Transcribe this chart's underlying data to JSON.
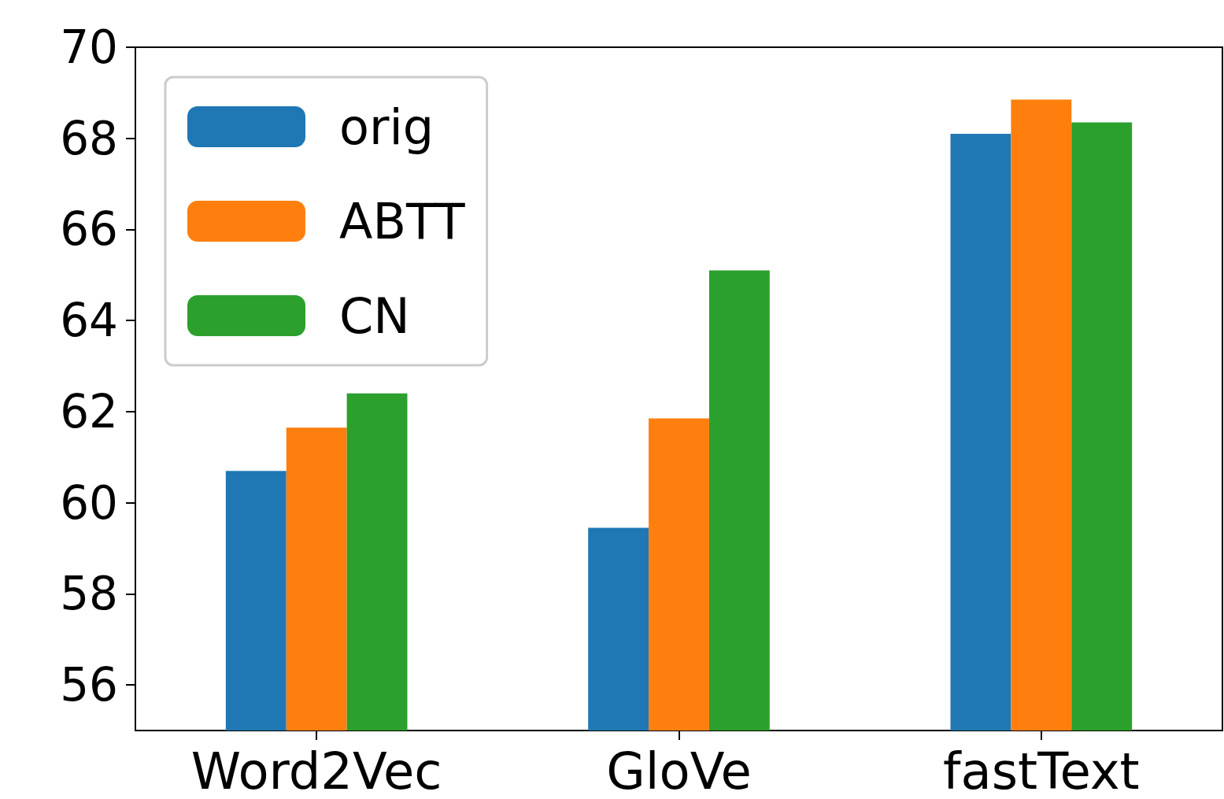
{
  "chart_data": {
    "type": "bar",
    "categories": [
      "Word2Vec",
      "GloVe",
      "fastText"
    ],
    "series": [
      {
        "name": "orig",
        "color": "#1f77b4",
        "values": [
          60.7,
          59.45,
          68.1
        ]
      },
      {
        "name": "ABTT",
        "color": "#ff7f0e",
        "values": [
          61.65,
          61.85,
          68.85
        ]
      },
      {
        "name": "CN",
        "color": "#2ca02c",
        "values": [
          62.4,
          65.1,
          68.35
        ]
      }
    ],
    "ylim": [
      55,
      70
    ],
    "yticks": [
      56,
      58,
      60,
      62,
      64,
      66,
      68,
      70
    ],
    "grid": false,
    "legend": "top left"
  }
}
